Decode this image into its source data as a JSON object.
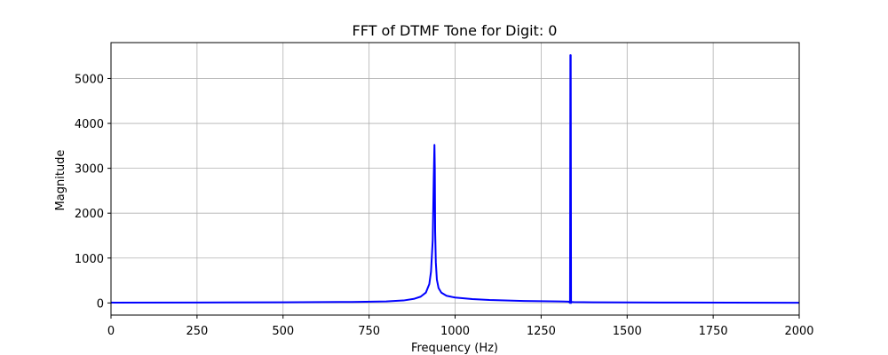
{
  "chart_data": {
    "type": "line",
    "title": "FFT of DTMF Tone for Digit: 0",
    "xlabel": "Frequency (Hz)",
    "ylabel": "Magnitude",
    "xlim": [
      0,
      2000
    ],
    "ylim": [
      -270,
      5800
    ],
    "x_ticks": [
      0,
      250,
      500,
      750,
      1000,
      1250,
      1500,
      1750,
      2000
    ],
    "y_ticks": [
      0,
      1000,
      2000,
      3000,
      4000,
      5000
    ],
    "grid": true,
    "series": [
      {
        "color": "#0000ff",
        "x": [
          0,
          250,
          500,
          700,
          800,
          850,
          880,
          900,
          915,
          925,
          930,
          935,
          938,
          940,
          941,
          942,
          944,
          947,
          952,
          960,
          975,
          1000,
          1050,
          1100,
          1200,
          1300,
          1330,
          1334,
          1335,
          1336,
          1337,
          1338,
          1340,
          1345,
          1400,
          1600,
          1800,
          2000
        ],
        "values": [
          8,
          10,
          14,
          22,
          35,
          55,
          90,
          140,
          230,
          420,
          700,
          1400,
          2800,
          3520,
          3000,
          1600,
          900,
          520,
          330,
          230,
          160,
          120,
          85,
          65,
          45,
          35,
          30,
          0,
          5520,
          5520,
          0,
          25,
          22,
          20,
          14,
          9,
          6,
          5
        ]
      }
    ]
  }
}
